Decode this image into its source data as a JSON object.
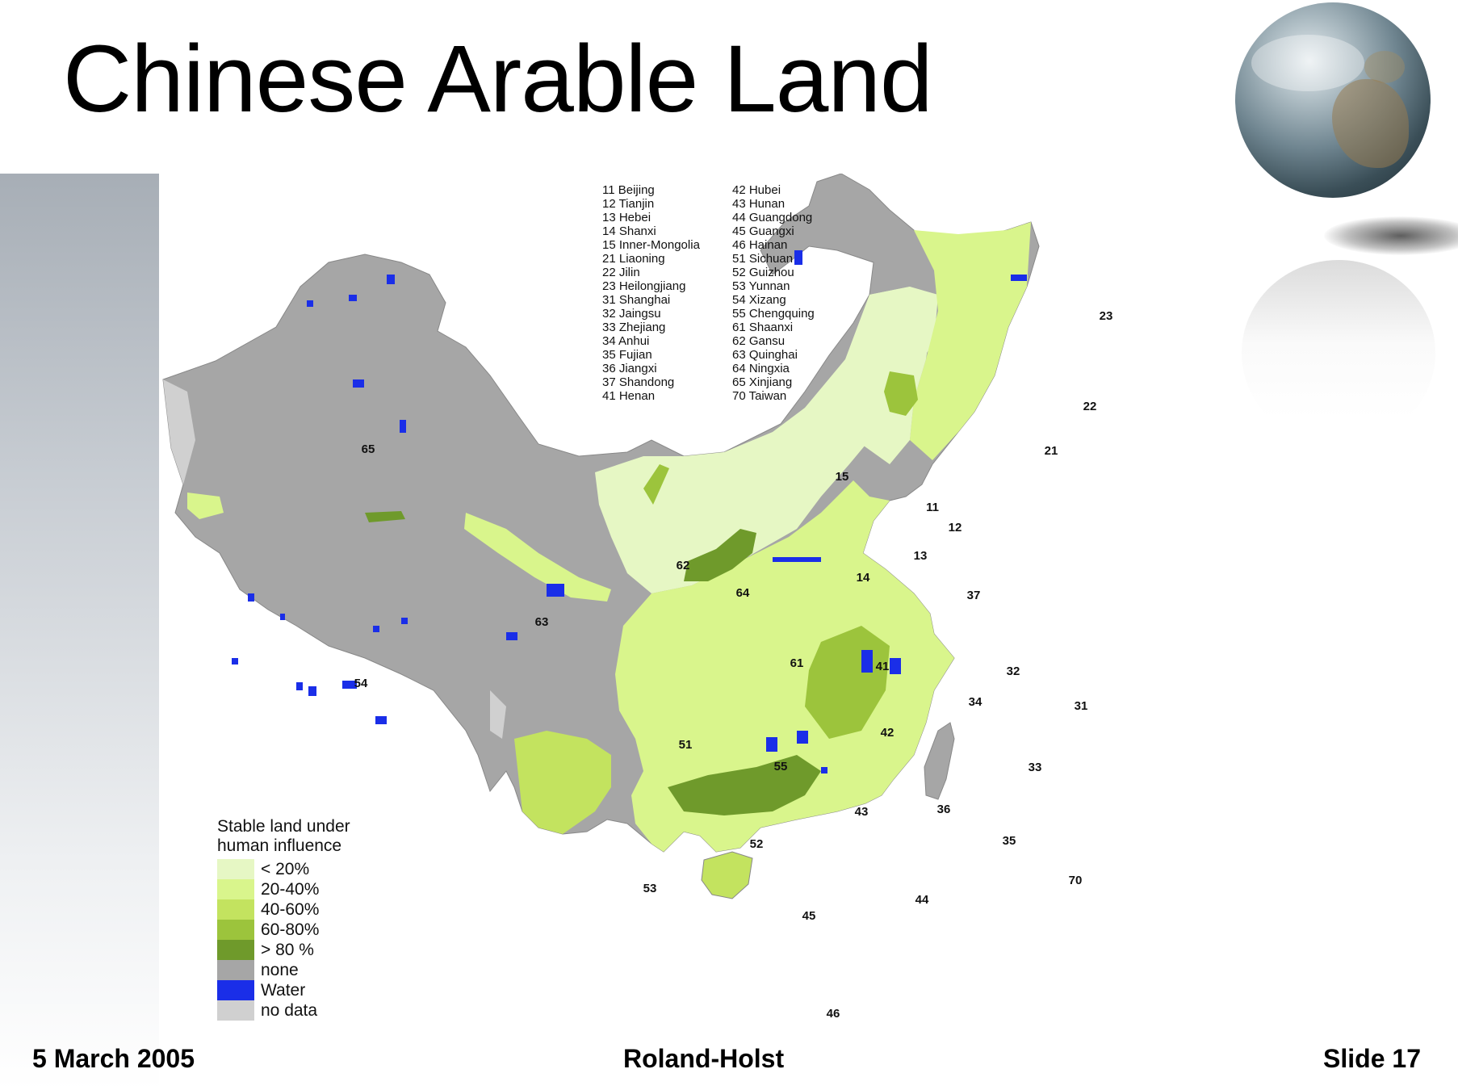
{
  "slide": {
    "title": "Chinese Arable Land",
    "date": "5 March 2005",
    "author": "Roland-Holst",
    "slide_number": "Slide 17"
  },
  "map": {
    "province_key_col1": [
      "11 Beijing",
      "12 Tianjin",
      "13 Hebei",
      "14 Shanxi",
      "15 Inner-Mongolia",
      "21 Liaoning",
      "22 Jilin",
      "23 Heilongjiang",
      "31 Shanghai",
      "32 Jaingsu",
      "33 Zhejiang",
      "34 Anhui",
      "35 Fujian",
      "36 Jiangxi",
      "37 Shandong",
      "41 Henan"
    ],
    "province_key_col2": [
      "42 Hubei",
      "43 Hunan",
      "44 Guangdong",
      "45 Guangxi",
      "46 Hainan",
      "51 Sichuan",
      "52 Guizhou",
      "53 Yunnan",
      "54 Xizang",
      "55 Chengquing",
      "61 Shaanxi",
      "62 Gansu",
      "63 Quinghai",
      "64 Ningxia",
      "65 Xinjiang",
      "70 Taiwan"
    ],
    "province_labels": [
      "65",
      "15",
      "23",
      "22",
      "21",
      "11",
      "12",
      "13",
      "14",
      "37",
      "62",
      "64",
      "63",
      "61",
      "41",
      "32",
      "34",
      "31",
      "42",
      "54",
      "51",
      "55",
      "33",
      "43",
      "36",
      "35",
      "52",
      "53",
      "45",
      "44",
      "70",
      "46"
    ],
    "legend": {
      "title_line1": "Stable land under",
      "title_line2": "human influence",
      "items": [
        {
          "label": "< 20%",
          "color": "#e6f7c4"
        },
        {
          "label": "20-40%",
          "color": "#d9f58c"
        },
        {
          "label": "40-60%",
          "color": "#c3e35f"
        },
        {
          "label": "60-80%",
          "color": "#9cc43c"
        },
        {
          "label": "> 80 %",
          "color": "#6f9a2b"
        },
        {
          "label": "none",
          "color": "#a6a6a6"
        },
        {
          "label": "Water",
          "color": "#1a2ee8"
        },
        {
          "label": "no data",
          "color": "#d0d0d0"
        }
      ]
    }
  }
}
